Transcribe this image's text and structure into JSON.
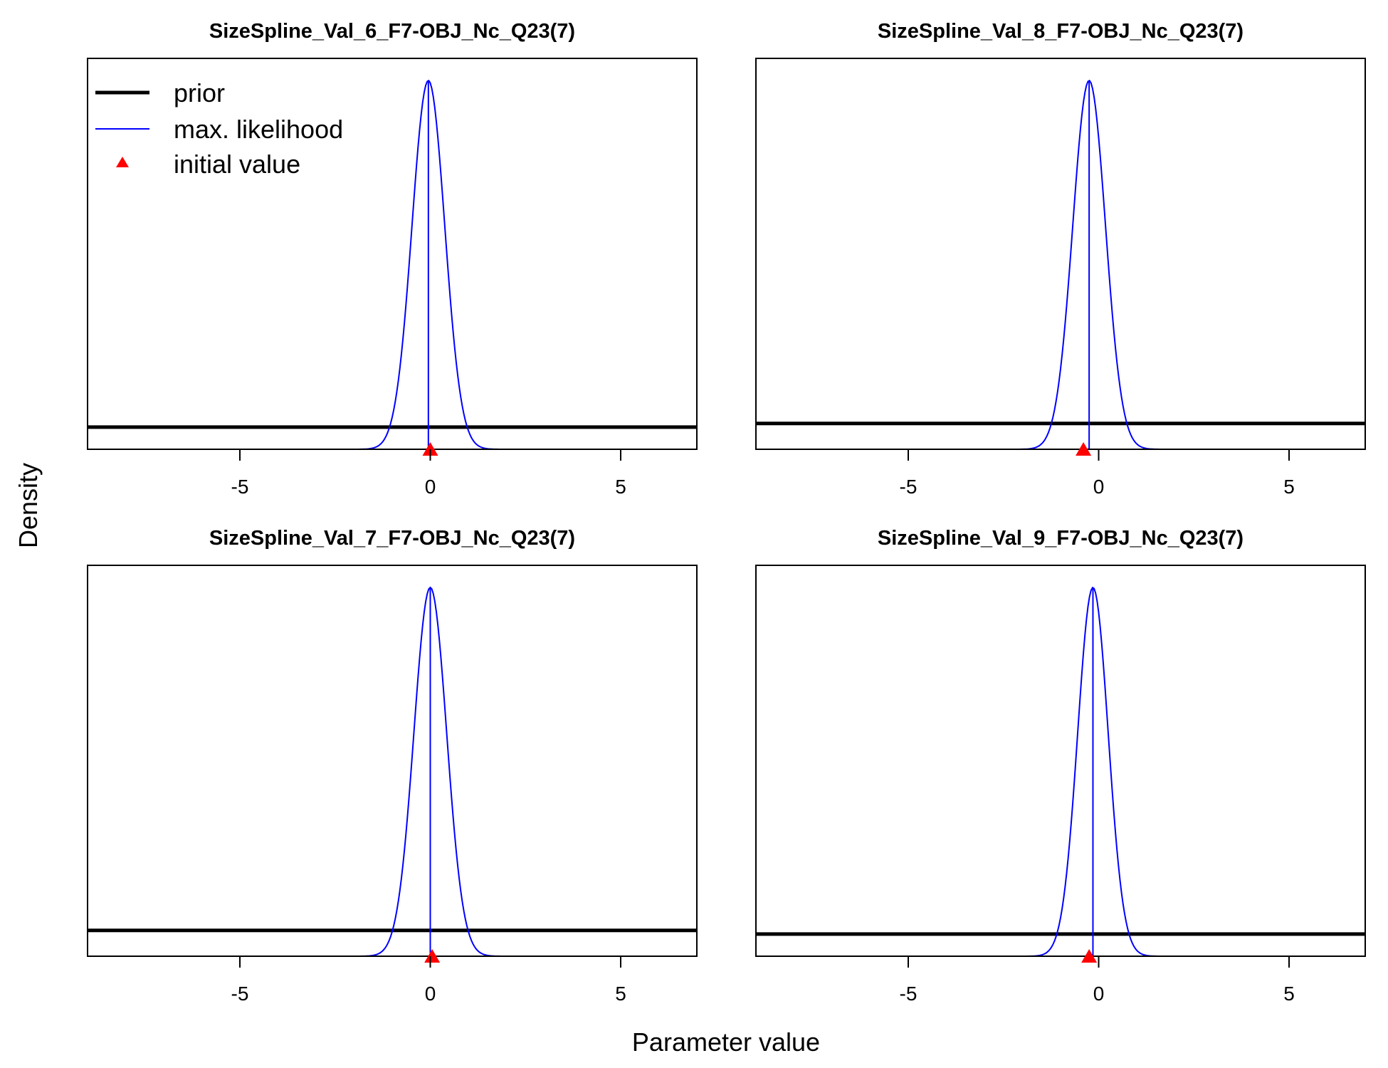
{
  "figure": {
    "xlabel": "Parameter value",
    "ylabel": "Density",
    "legend": {
      "placement": "top-left of first panel",
      "items": [
        {
          "label": "prior",
          "kind": "line",
          "color": "#000000",
          "weight": "thick"
        },
        {
          "label": "max. likelihood",
          "kind": "line",
          "color": "#0000ff",
          "weight": "thin"
        },
        {
          "label": "initial value",
          "kind": "triangle-marker",
          "color": "#ff0000"
        }
      ]
    },
    "colors": {
      "prior": "#000000",
      "mle": "#0000ff",
      "initial": "#ff0000",
      "frame": "#000000"
    }
  },
  "chart_data": [
    {
      "type": "line",
      "title": "SizeSpline_Val_6_F7-OBJ_Nc_Q23(7)",
      "xlim": [
        -9,
        7
      ],
      "xticks": [
        -5,
        0,
        5
      ],
      "xtick_labels": [
        "-5",
        "0",
        "5"
      ],
      "y_ticks_shown": false,
      "ylim": [
        0,
        1.06
      ],
      "prior_density": 0.06,
      "mle_mean": -0.05,
      "mle_sd": 0.43,
      "mle_peak": 1.0,
      "initial_value": 0.0
    },
    {
      "type": "line",
      "title": "SizeSpline_Val_8_F7-OBJ_Nc_Q23(7)",
      "xlim": [
        -9,
        7
      ],
      "xticks": [
        -5,
        0,
        5
      ],
      "xtick_labels": [
        "-5",
        "0",
        "5"
      ],
      "y_ticks_shown": false,
      "ylim": [
        0,
        1.06
      ],
      "prior_density": 0.07,
      "mle_mean": -0.25,
      "mle_sd": 0.43,
      "mle_peak": 1.0,
      "initial_value": -0.4
    },
    {
      "type": "line",
      "title": "SizeSpline_Val_7_F7-OBJ_Nc_Q23(7)",
      "xlim": [
        -9,
        7
      ],
      "xticks": [
        -5,
        0,
        5
      ],
      "xtick_labels": [
        "-5",
        "0",
        "5"
      ],
      "y_ticks_shown": false,
      "ylim": [
        0,
        1.06
      ],
      "prior_density": 0.07,
      "mle_mean": 0.0,
      "mle_sd": 0.43,
      "mle_peak": 1.0,
      "initial_value": 0.05
    },
    {
      "type": "line",
      "title": "SizeSpline_Val_9_F7-OBJ_Nc_Q23(7)",
      "xlim": [
        -9,
        7
      ],
      "xticks": [
        -5,
        0,
        5
      ],
      "xtick_labels": [
        "-5",
        "0",
        "5"
      ],
      "y_ticks_shown": false,
      "ylim": [
        0,
        1.06
      ],
      "prior_density": 0.06,
      "mle_mean": -0.15,
      "mle_sd": 0.4,
      "mle_peak": 1.0,
      "initial_value": -0.25
    }
  ]
}
